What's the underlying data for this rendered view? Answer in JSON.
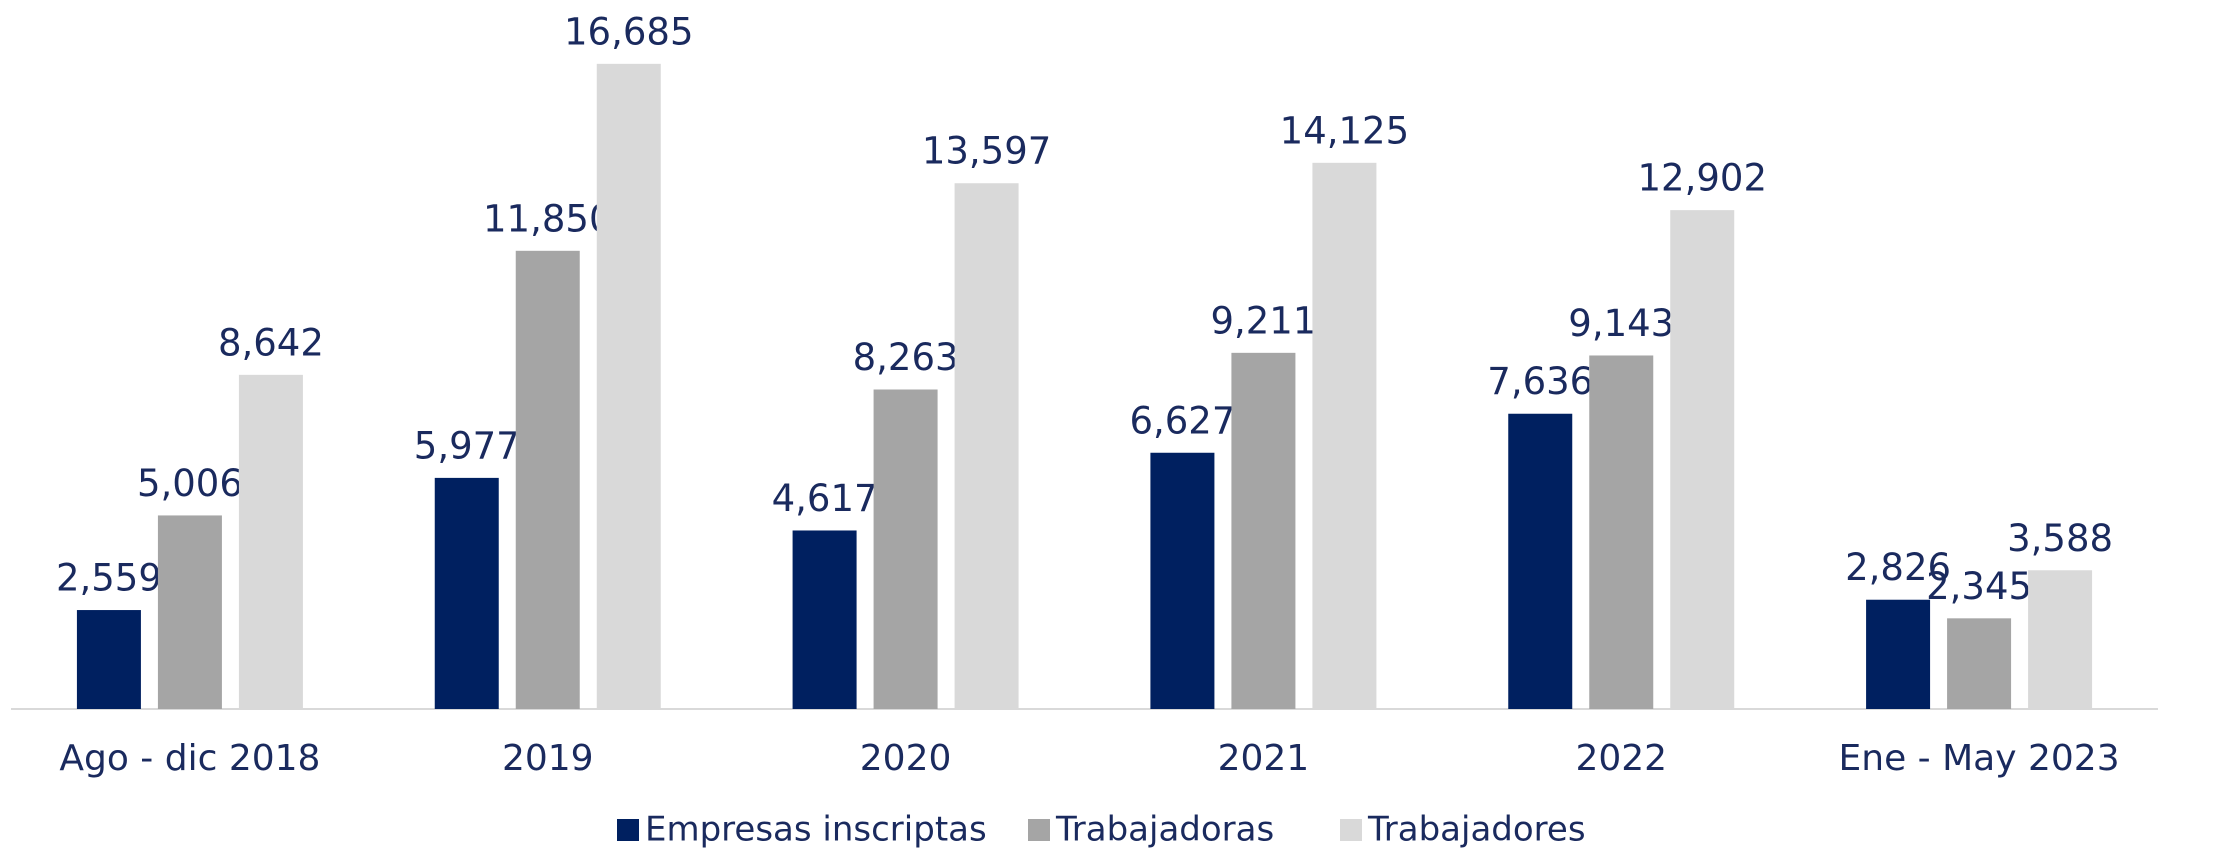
{
  "chart_data": {
    "type": "bar",
    "categories": [
      "Ago - dic 2018",
      "2019",
      "2020",
      "2021",
      "2022",
      "Ene - May 2023"
    ],
    "series": [
      {
        "name": "Empresas inscriptas",
        "color": "#002060",
        "values": [
          2559,
          5977,
          4617,
          6627,
          7636,
          2826
        ],
        "value_labels": [
          "2,559",
          "5,977",
          "4,617",
          "6,627",
          "7,636",
          "2,826"
        ]
      },
      {
        "name": "Trabajadoras",
        "color": "#a5a5a5",
        "values": [
          5006,
          11850,
          8263,
          9211,
          9143,
          2345
        ],
        "value_labels": [
          "5,006",
          "11,850",
          "8,263",
          "9,211",
          "9,143",
          "2,345"
        ]
      },
      {
        "name": "Trabajadores",
        "color": "#d9d9d9",
        "values": [
          8642,
          16685,
          13597,
          14125,
          12902,
          3588
        ],
        "value_labels": [
          "8,642",
          "16,685",
          "13,597",
          "14,125",
          "12,902",
          "3,588"
        ]
      }
    ],
    "ylim": [
      0,
      18000
    ],
    "legend": "bottom"
  }
}
